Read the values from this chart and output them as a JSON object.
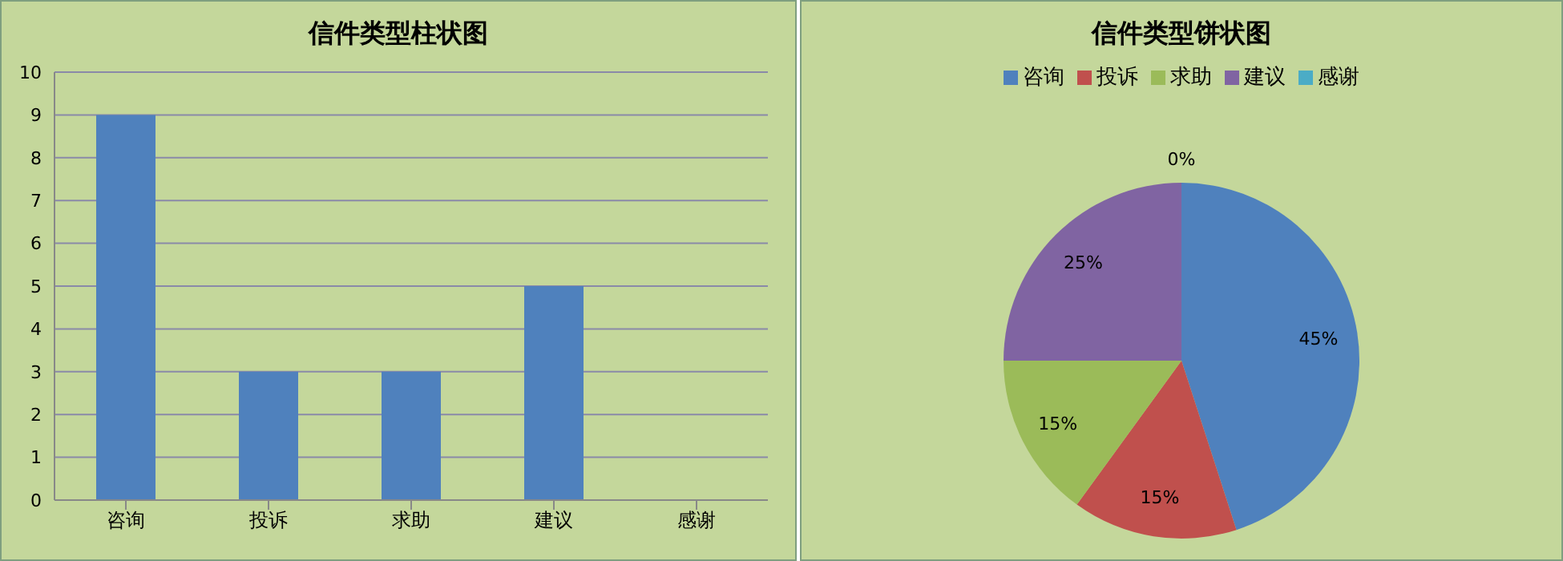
{
  "chart_data": [
    {
      "type": "bar",
      "title": "信件类型柱状图",
      "categories": [
        "咨询",
        "投诉",
        "求助",
        "建议",
        "感谢"
      ],
      "values": [
        9,
        3,
        3,
        5,
        0
      ],
      "color": "#4f81bd",
      "ylim": [
        0,
        10
      ],
      "yticks": [
        0,
        1,
        2,
        3,
        4,
        5,
        6,
        7,
        8,
        9,
        10
      ],
      "grid": "y"
    },
    {
      "type": "pie",
      "title": "信件类型饼状图",
      "categories": [
        "咨询",
        "投诉",
        "求助",
        "建议",
        "感谢"
      ],
      "values": [
        45,
        15,
        15,
        25,
        0
      ],
      "colors": [
        "#4f81bd",
        "#c0504d",
        "#9bbb59",
        "#8064a2",
        "#4bacc6"
      ],
      "value_labels": [
        "45%",
        "15%",
        "15%",
        "25%",
        "0%"
      ],
      "legend": "top"
    }
  ]
}
